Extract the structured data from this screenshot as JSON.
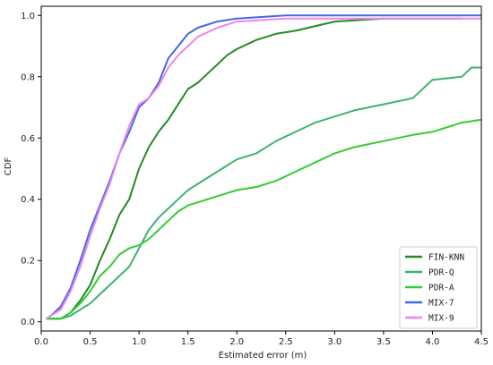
{
  "chart_data": {
    "type": "line",
    "title": "",
    "xlabel": "Estimated error (m)",
    "ylabel": "CDF",
    "xlim": [
      0,
      4.5
    ],
    "ylim": [
      -0.03,
      1.03
    ],
    "xticks": [
      "0.0",
      "0.5",
      "1.0",
      "1.5",
      "2.0",
      "2.5",
      "3.0",
      "3.5",
      "4.0",
      "4.5"
    ],
    "yticks": [
      "0.0",
      "0.2",
      "0.4",
      "0.6",
      "0.8",
      "1.0"
    ],
    "grid": false,
    "legend": "bottom-right",
    "series": [
      {
        "name": "FIN-KNN",
        "color": "#228b22",
        "points": [
          [
            0.05,
            0.01
          ],
          [
            0.2,
            0.01
          ],
          [
            0.3,
            0.03
          ],
          [
            0.4,
            0.07
          ],
          [
            0.5,
            0.12
          ],
          [
            0.6,
            0.2
          ],
          [
            0.7,
            0.27
          ],
          [
            0.8,
            0.35
          ],
          [
            0.9,
            0.4
          ],
          [
            1.0,
            0.5
          ],
          [
            1.1,
            0.57
          ],
          [
            1.2,
            0.62
          ],
          [
            1.3,
            0.66
          ],
          [
            1.4,
            0.71
          ],
          [
            1.5,
            0.76
          ],
          [
            1.6,
            0.78
          ],
          [
            1.7,
            0.81
          ],
          [
            1.8,
            0.84
          ],
          [
            1.9,
            0.87
          ],
          [
            2.0,
            0.89
          ],
          [
            2.2,
            0.92
          ],
          [
            2.4,
            0.94
          ],
          [
            2.6,
            0.95
          ],
          [
            3.0,
            0.98
          ],
          [
            3.5,
            0.99
          ],
          [
            4.3,
            0.99
          ]
        ]
      },
      {
        "name": "PDR-Q",
        "color": "#3cb371",
        "points": [
          [
            0.05,
            0.01
          ],
          [
            0.2,
            0.01
          ],
          [
            0.3,
            0.02
          ],
          [
            0.4,
            0.04
          ],
          [
            0.5,
            0.06
          ],
          [
            0.6,
            0.09
          ],
          [
            0.7,
            0.12
          ],
          [
            0.8,
            0.15
          ],
          [
            0.9,
            0.18
          ],
          [
            1.0,
            0.24
          ],
          [
            1.1,
            0.3
          ],
          [
            1.2,
            0.34
          ],
          [
            1.3,
            0.37
          ],
          [
            1.4,
            0.4
          ],
          [
            1.5,
            0.43
          ],
          [
            1.6,
            0.45
          ],
          [
            1.8,
            0.49
          ],
          [
            2.0,
            0.53
          ],
          [
            2.2,
            0.55
          ],
          [
            2.4,
            0.59
          ],
          [
            2.6,
            0.62
          ],
          [
            2.8,
            0.65
          ],
          [
            3.0,
            0.67
          ],
          [
            3.2,
            0.69
          ],
          [
            3.5,
            0.71
          ],
          [
            3.8,
            0.73
          ],
          [
            4.0,
            0.79
          ],
          [
            4.3,
            0.8
          ],
          [
            4.4,
            0.83
          ],
          [
            4.5,
            0.83
          ]
        ]
      },
      {
        "name": "PDR-A",
        "color": "#32cd32",
        "points": [
          [
            0.05,
            0.01
          ],
          [
            0.2,
            0.01
          ],
          [
            0.3,
            0.03
          ],
          [
            0.4,
            0.06
          ],
          [
            0.5,
            0.1
          ],
          [
            0.6,
            0.15
          ],
          [
            0.7,
            0.18
          ],
          [
            0.8,
            0.22
          ],
          [
            0.9,
            0.24
          ],
          [
            1.0,
            0.25
          ],
          [
            1.1,
            0.27
          ],
          [
            1.2,
            0.3
          ],
          [
            1.3,
            0.33
          ],
          [
            1.4,
            0.36
          ],
          [
            1.5,
            0.38
          ],
          [
            1.6,
            0.39
          ],
          [
            1.8,
            0.41
          ],
          [
            2.0,
            0.43
          ],
          [
            2.2,
            0.44
          ],
          [
            2.4,
            0.46
          ],
          [
            2.6,
            0.49
          ],
          [
            2.8,
            0.52
          ],
          [
            3.0,
            0.55
          ],
          [
            3.2,
            0.57
          ],
          [
            3.5,
            0.59
          ],
          [
            3.8,
            0.61
          ],
          [
            4.0,
            0.62
          ],
          [
            4.3,
            0.65
          ],
          [
            4.5,
            0.66
          ]
        ]
      },
      {
        "name": "MIX-7",
        "color": "#4169e1",
        "points": [
          [
            0.05,
            0.01
          ],
          [
            0.1,
            0.02
          ],
          [
            0.2,
            0.05
          ],
          [
            0.3,
            0.11
          ],
          [
            0.4,
            0.2
          ],
          [
            0.5,
            0.3
          ],
          [
            0.6,
            0.38
          ],
          [
            0.7,
            0.46
          ],
          [
            0.8,
            0.55
          ],
          [
            0.9,
            0.62
          ],
          [
            1.0,
            0.7
          ],
          [
            1.1,
            0.73
          ],
          [
            1.2,
            0.78
          ],
          [
            1.3,
            0.86
          ],
          [
            1.4,
            0.9
          ],
          [
            1.5,
            0.94
          ],
          [
            1.6,
            0.96
          ],
          [
            1.8,
            0.98
          ],
          [
            2.0,
            0.99
          ],
          [
            2.5,
            1.0
          ],
          [
            4.5,
            1.0
          ]
        ]
      },
      {
        "name": "MIX-9",
        "color": "#ee82ee",
        "points": [
          [
            0.05,
            0.01
          ],
          [
            0.1,
            0.02
          ],
          [
            0.2,
            0.04
          ],
          [
            0.3,
            0.1
          ],
          [
            0.4,
            0.18
          ],
          [
            0.5,
            0.28
          ],
          [
            0.6,
            0.37
          ],
          [
            0.7,
            0.45
          ],
          [
            0.8,
            0.55
          ],
          [
            0.9,
            0.64
          ],
          [
            1.0,
            0.71
          ],
          [
            1.1,
            0.73
          ],
          [
            1.2,
            0.77
          ],
          [
            1.3,
            0.83
          ],
          [
            1.4,
            0.87
          ],
          [
            1.5,
            0.9
          ],
          [
            1.6,
            0.93
          ],
          [
            1.8,
            0.96
          ],
          [
            2.0,
            0.98
          ],
          [
            2.5,
            0.99
          ],
          [
            4.5,
            0.99
          ]
        ]
      }
    ]
  }
}
